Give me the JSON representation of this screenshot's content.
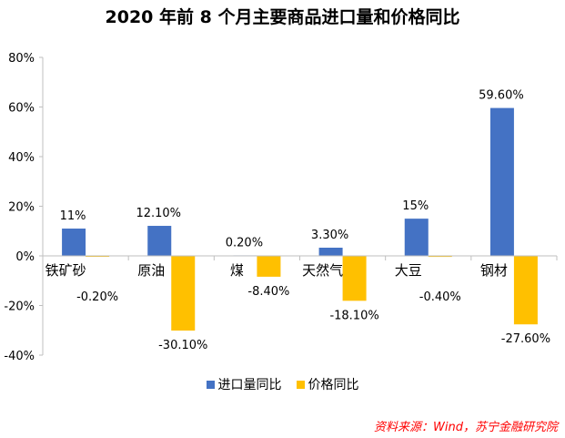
{
  "colors": {
    "import": "#4472C4",
    "price": "#FFC000",
    "source": "#FF0000",
    "axis": "#BFBFBF"
  },
  "source_text": "资料来源：Wind，苏宁金融研究院",
  "chart_data": {
    "type": "bar",
    "title": "2020 年前 8 个月主要商品进口量和价格同比",
    "categories": [
      "铁矿砂",
      "原油",
      "煤",
      "天然气",
      "大豆",
      "钢材"
    ],
    "series": [
      {
        "name": "进口量同比",
        "values": [
          11.0,
          12.1,
          0.2,
          3.3,
          15.0,
          59.6
        ],
        "labels": [
          "11%",
          "12.10%",
          "0.20%",
          "3.30%",
          "15%",
          "59.60%"
        ]
      },
      {
        "name": "价格同比",
        "values": [
          -0.2,
          -30.1,
          -8.4,
          -18.1,
          -0.4,
          -27.6
        ],
        "labels": [
          "-0.20%",
          "-30.10%",
          "-8.40%",
          "-18.10%",
          "-0.40%",
          "-27.60%"
        ]
      }
    ],
    "ylim": [
      -40,
      80
    ],
    "yticks": [
      -40,
      -20,
      0,
      20,
      40,
      60,
      80
    ],
    "ytick_labels": [
      "-40%",
      "-20%",
      "0%",
      "20%",
      "40%",
      "60%",
      "80%"
    ],
    "grid": false,
    "legend_position": "bottom"
  }
}
